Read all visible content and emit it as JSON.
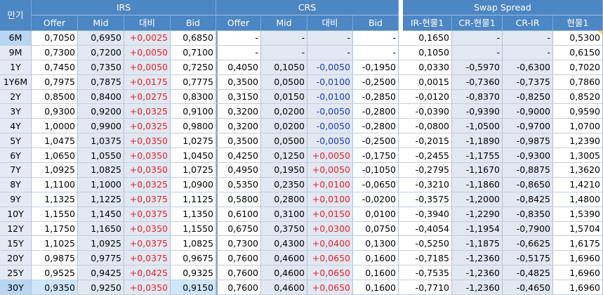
{
  "header": {
    "tenor_label": "만기",
    "groups": {
      "irs": "IRS",
      "crs": "CRS",
      "swap": "Swap Spread"
    },
    "irs_cols": [
      "Offer",
      "Mid",
      "대비",
      "Bid"
    ],
    "crs_cols": [
      "Offer",
      "Mid",
      "대비",
      "Bid"
    ],
    "swap_cols": [
      "IR-현물1",
      "CR-현물1",
      "CR-IR",
      "현물1"
    ]
  },
  "rows": [
    {
      "tenor": "6M",
      "irs": [
        "0,7050",
        "0,6950",
        "+0,0025",
        "0,6850"
      ],
      "crs": [
        "-",
        "-",
        "-",
        "-"
      ],
      "swap": [
        "0,1650",
        "-",
        "-",
        "0,5300"
      ]
    },
    {
      "tenor": "9M",
      "irs": [
        "0,7300",
        "0,7200",
        "+0,0050",
        "0,7100"
      ],
      "crs": [
        "-",
        "-",
        "-",
        "-"
      ],
      "swap": [
        "0,1050",
        "-",
        "-",
        "0,6150"
      ]
    },
    {
      "tenor": "1Y",
      "irs": [
        "0,7450",
        "0,7350",
        "+0,0050",
        "0,7250"
      ],
      "crs": [
        "0,4050",
        "0,1050",
        "-0,0050",
        "-0,1950"
      ],
      "swap": [
        "0,0330",
        "-0,5970",
        "-0,6300",
        "0,7020"
      ]
    },
    {
      "tenor": "1Y6M",
      "irs": [
        "0,7975",
        "0,7875",
        "+0,0175",
        "0,7775"
      ],
      "crs": [
        "0,3500",
        "0,0500",
        "-0,0100",
        "-0,2500"
      ],
      "swap": [
        "0,0015",
        "-0,7360",
        "-0,7375",
        "0,7860"
      ]
    },
    {
      "tenor": "2Y",
      "irs": [
        "0,8500",
        "0,8400",
        "+0,0275",
        "0,8300"
      ],
      "crs": [
        "0,3150",
        "0,0150",
        "-0,0100",
        "-0,2850"
      ],
      "swap": [
        "-0,0120",
        "-0,8370",
        "-0,8250",
        "0,8520"
      ]
    },
    {
      "tenor": "3Y",
      "irs": [
        "0,9300",
        "0,9200",
        "+0,0325",
        "0,9100"
      ],
      "crs": [
        "0,3200",
        "0,0200",
        "-0,0050",
        "-0,2800"
      ],
      "swap": [
        "-0,0390",
        "-0,9390",
        "-0,9000",
        "0,9590"
      ]
    },
    {
      "tenor": "4Y",
      "irs": [
        "1,0000",
        "0,9900",
        "+0,0325",
        "0,9800"
      ],
      "crs": [
        "0,3200",
        "0,0200",
        "-0,0050",
        "-0,2800"
      ],
      "swap": [
        "-0,0800",
        "-1,0500",
        "-0,9700",
        "1,0700"
      ]
    },
    {
      "tenor": "5Y",
      "irs": [
        "1,0475",
        "1,0375",
        "+0,0350",
        "1,0275"
      ],
      "crs": [
        "0,3500",
        "0,0500",
        "-0,0050",
        "-0,2500"
      ],
      "swap": [
        "-0,2015",
        "-1,1890",
        "-0,9875",
        "1,2390"
      ]
    },
    {
      "tenor": "6Y",
      "irs": [
        "1,0650",
        "1,0550",
        "+0,0350",
        "1,0450"
      ],
      "crs": [
        "0,4250",
        "0,1250",
        "+0,0050",
        "-0,1750"
      ],
      "swap": [
        "-0,2455",
        "-1,1755",
        "-0,9300",
        "1,3005"
      ]
    },
    {
      "tenor": "7Y",
      "irs": [
        "1,0925",
        "1,0825",
        "+0,0350",
        "1,0725"
      ],
      "crs": [
        "0,4950",
        "0,1950",
        "+0,0050",
        "-0,1050"
      ],
      "swap": [
        "-0,2795",
        "-1,1670",
        "-0,8875",
        "1,3620"
      ]
    },
    {
      "tenor": "8Y",
      "irs": [
        "1,1100",
        "1,1000",
        "+0,0325",
        "1,0900"
      ],
      "crs": [
        "0,5350",
        "0,2350",
        "+0,0100",
        "-0,0650"
      ],
      "swap": [
        "-0,3210",
        "-1,1860",
        "-0,8650",
        "1,4210"
      ]
    },
    {
      "tenor": "9Y",
      "irs": [
        "1,1325",
        "1,1225",
        "+0,0375",
        "1,1125"
      ],
      "crs": [
        "0,5800",
        "0,2800",
        "+0,0100",
        "-0,0200"
      ],
      "swap": [
        "-0,3575",
        "-1,2000",
        "-0,8425",
        "1,4800"
      ]
    },
    {
      "tenor": "10Y",
      "irs": [
        "1,1550",
        "1,1450",
        "+0,0375",
        "1,1350"
      ],
      "crs": [
        "0,6100",
        "0,3100",
        "+0,0150",
        "0,0100"
      ],
      "swap": [
        "-0,3940",
        "-1,2290",
        "-0,8350",
        "1,5390"
      ]
    },
    {
      "tenor": "12Y",
      "irs": [
        "1,1750",
        "1,1650",
        "+0,0350",
        "1,1550"
      ],
      "crs": [
        "0,6750",
        "0,3750",
        "+0,0300",
        "0,0750"
      ],
      "swap": [
        "-0,4054",
        "-1,1954",
        "-0,7900",
        "1,5704"
      ]
    },
    {
      "tenor": "15Y",
      "irs": [
        "1,1025",
        "1,0925",
        "+0,0375",
        "1,0825"
      ],
      "crs": [
        "0,7300",
        "0,4300",
        "+0,0400",
        "0,1300"
      ],
      "swap": [
        "-0,5250",
        "-1,1875",
        "-0,6625",
        "1,6175"
      ]
    },
    {
      "tenor": "20Y",
      "irs": [
        "0,9875",
        "0,9775",
        "+0,0375",
        "0,9675"
      ],
      "crs": [
        "0,7600",
        "0,4600",
        "+0,0650",
        "0,1600"
      ],
      "swap": [
        "-0,7185",
        "-1,2360",
        "-0,5175",
        "1,6960"
      ]
    },
    {
      "tenor": "25Y",
      "irs": [
        "0,9525",
        "0,9425",
        "+0,0425",
        "0,9325"
      ],
      "crs": [
        "0,7600",
        "0,4600",
        "+0,0650",
        "0,1600"
      ],
      "swap": [
        "-0,7535",
        "-1,2360",
        "-0,4825",
        "1,6960"
      ]
    },
    {
      "tenor": "30Y",
      "irs": [
        "0,9350",
        "0,9250",
        "+0,0350",
        "0,9150"
      ],
      "crs": [
        "0,7600",
        "0,4600",
        "+0,0650",
        "0,1600"
      ],
      "swap": [
        "-0,7710",
        "-1,2360",
        "-0,4650",
        "1,6960"
      ]
    }
  ],
  "colors": {
    "header_bg": "#4c86c3",
    "positive": "#e8212a",
    "negative": "#1a39c6",
    "shaded": "#e1e8f1"
  }
}
